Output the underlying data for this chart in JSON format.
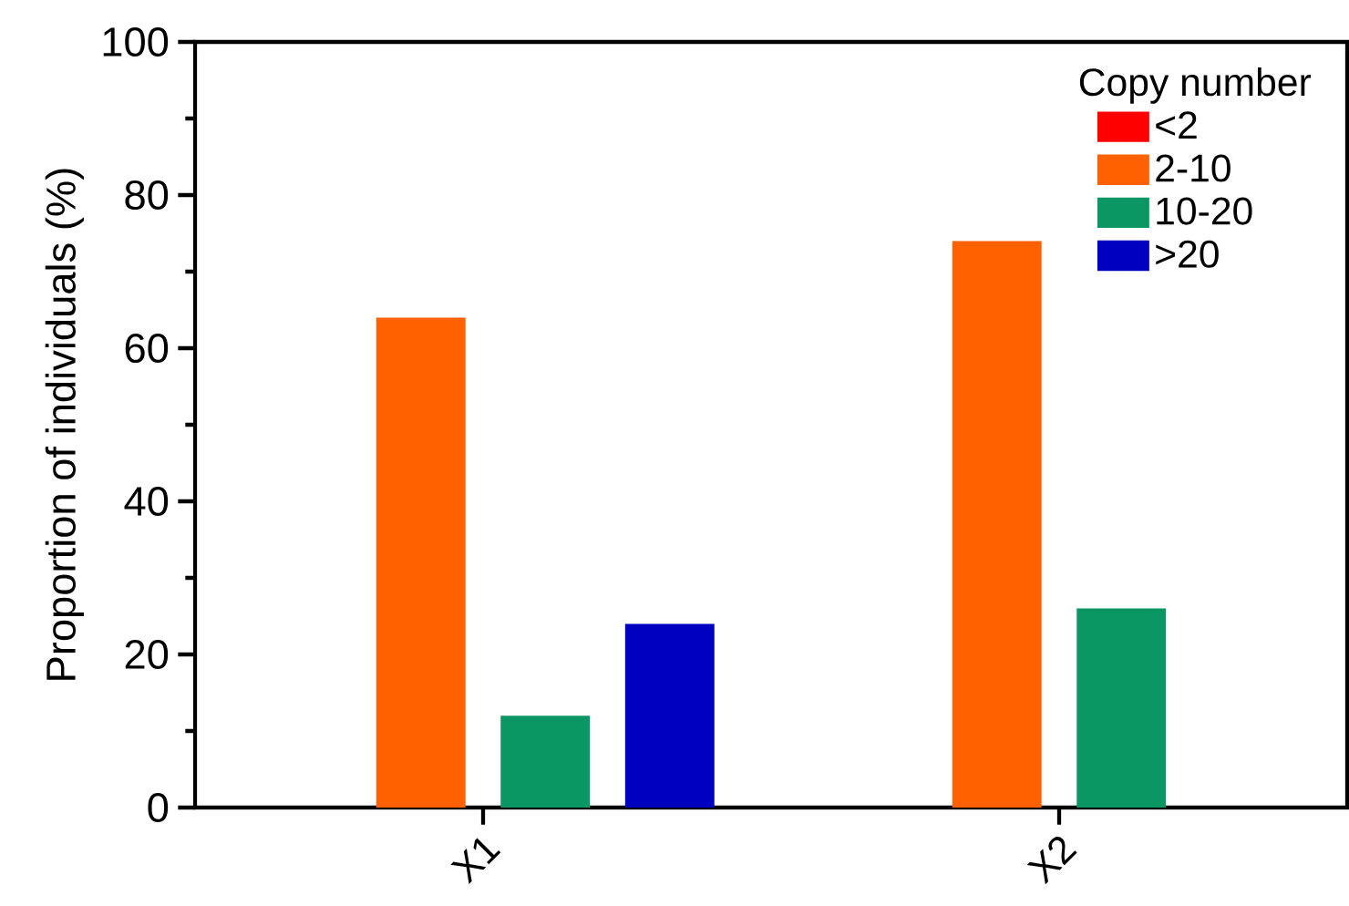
{
  "chart_data": {
    "type": "bar",
    "ylabel": "Proportion of individuals (%)",
    "legend_title": "Copy number",
    "categories": [
      "X1",
      "X2"
    ],
    "series": [
      {
        "name": "<2",
        "color": "#ff0000",
        "values": [
          0,
          0
        ]
      },
      {
        "name": "2-10",
        "color": "#ff6000",
        "values": [
          64,
          74
        ]
      },
      {
        "name": "10-20",
        "color": "#0a9763",
        "values": [
          12,
          26
        ]
      },
      {
        "name": ">20",
        "color": "#0000c0",
        "values": [
          24,
          0
        ]
      }
    ],
    "ylim": [
      0,
      100
    ],
    "yticks": [
      0,
      {
        "value": 10,
        "label": null
      },
      20,
      {
        "value": 30,
        "label": null
      },
      40,
      {
        "value": 50,
        "label": null
      },
      60,
      {
        "value": 70,
        "label": null
      },
      80,
      {
        "value": 90,
        "label": null
      },
      100
    ],
    "grid": false,
    "legend": "top right"
  }
}
